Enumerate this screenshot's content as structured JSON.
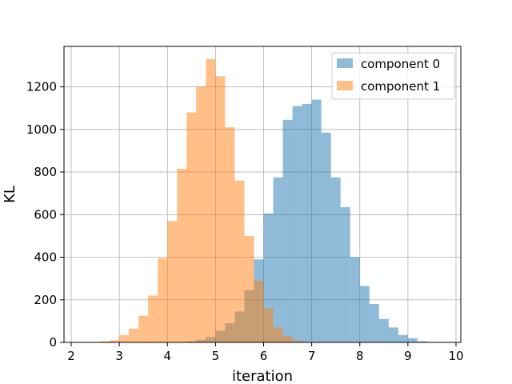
{
  "chart_data": {
    "type": "histogram",
    "xlabel": "iteration",
    "ylabel": "KL",
    "xlim": [
      1.85,
      10.1
    ],
    "ylim": [
      0,
      1390
    ],
    "xticks": [
      2,
      3,
      4,
      5,
      6,
      7,
      8,
      9,
      10
    ],
    "yticks": [
      0,
      200,
      400,
      600,
      800,
      1000,
      1200
    ],
    "grid": true,
    "legend_position": "top-right",
    "series": [
      {
        "name": "component 0",
        "color": "#1f77b4",
        "opacity": 0.5,
        "bin_edges": [
          4.4,
          4.6,
          4.8,
          5.0,
          5.2,
          5.4,
          5.6,
          5.8,
          6.0,
          6.2,
          6.4,
          6.6,
          6.8,
          7.0,
          7.2,
          7.4,
          7.6,
          7.8,
          8.0,
          8.2,
          8.4,
          8.6,
          8.8,
          9.0,
          9.2,
          9.4
        ],
        "counts": [
          5,
          12,
          25,
          55,
          90,
          145,
          245,
          390,
          605,
          775,
          1045,
          1110,
          1120,
          1140,
          985,
          775,
          635,
          400,
          265,
          180,
          110,
          70,
          35,
          20,
          5
        ]
      },
      {
        "name": "component 1",
        "color": "#ff7f0e",
        "opacity": 0.5,
        "bin_edges": [
          2.4,
          2.6,
          2.8,
          3.0,
          3.2,
          3.4,
          3.6,
          3.8,
          4.0,
          4.2,
          4.4,
          4.6,
          4.8,
          5.0,
          5.2,
          5.4,
          5.6,
          5.8,
          6.0,
          6.2,
          6.4,
          6.6,
          6.8,
          7.0
        ],
        "counts": [
          2,
          5,
          10,
          35,
          65,
          125,
          220,
          395,
          570,
          815,
          1080,
          1200,
          1330,
          1250,
          1010,
          760,
          500,
          290,
          160,
          70,
          30,
          10,
          3
        ]
      }
    ]
  }
}
